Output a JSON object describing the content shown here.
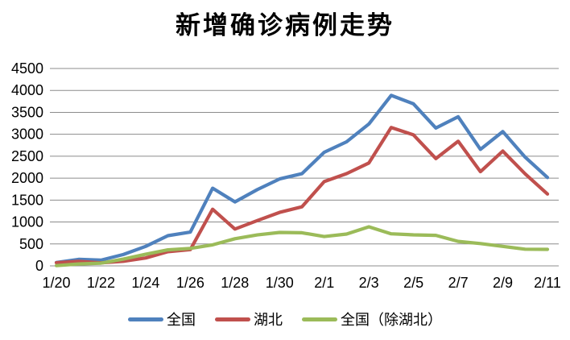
{
  "page": {
    "background": "#ffffff"
  },
  "chart_data": {
    "type": "line",
    "title": "新增确诊病例走势",
    "xlabel": "",
    "ylabel": "",
    "grid": true,
    "legend_position": "bottom",
    "x_categories": [
      "1/20",
      "1/21",
      "1/22",
      "1/23",
      "1/24",
      "1/25",
      "1/26",
      "1/27",
      "1/28",
      "1/29",
      "1/30",
      "1/31",
      "2/1",
      "2/2",
      "2/3",
      "2/4",
      "2/5",
      "2/6",
      "2/7",
      "2/8",
      "2/9",
      "2/10",
      "2/11"
    ],
    "x_tick_labels": [
      "1/20",
      "1/22",
      "1/24",
      "1/26",
      "1/28",
      "1/30",
      "2/1",
      "2/3",
      "2/5",
      "2/7",
      "2/9",
      "2/11"
    ],
    "y_axis": {
      "min": 0,
      "max": 4500,
      "step": 500,
      "tick_labels": [
        "0",
        "500",
        "1000",
        "1500",
        "2000",
        "2500",
        "3000",
        "3500",
        "4000",
        "4500"
      ]
    },
    "series": [
      {
        "key": "national",
        "name": "全国",
        "color": "#4F81BD",
        "values": [
          77,
          149,
          131,
          259,
          444,
          688,
          769,
          1771,
          1459,
          1737,
          1982,
          2102,
          2590,
          2829,
          3235,
          3887,
          3694,
          3143,
          3399,
          2656,
          3062,
          2478,
          2015
        ]
      },
      {
        "key": "hubei",
        "name": "湖北",
        "color": "#C0504D",
        "values": [
          72,
          105,
          69,
          105,
          180,
          323,
          371,
          1291,
          840,
          1032,
          1220,
          1347,
          1921,
          2103,
          2345,
          3156,
          2987,
          2447,
          2841,
          2147,
          2618,
          2097,
          1638
        ]
      },
      {
        "key": "national-excl-hubei",
        "name": "全国（除湖北）",
        "color": "#9BBB59",
        "values": [
          5,
          44,
          62,
          154,
          264,
          365,
          398,
          480,
          619,
          705,
          762,
          755,
          669,
          726,
          890,
          731,
          707,
          696,
          558,
          509,
          444,
          381,
          377
        ]
      }
    ],
    "colors": {
      "gridline": "#8C8C8C",
      "axis_text": "#000000"
    }
  }
}
